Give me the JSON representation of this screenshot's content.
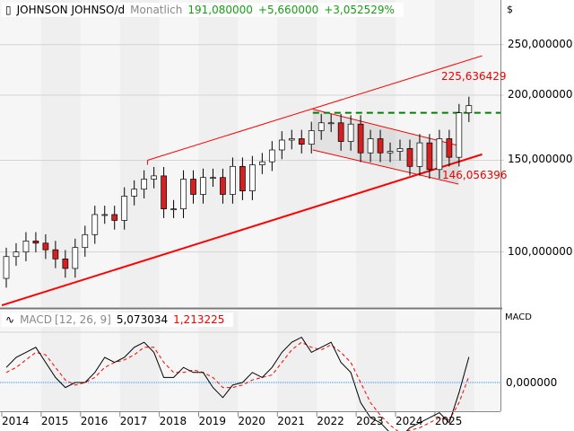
{
  "header": {
    "symbol": "JOHNSON JOHNSO/d",
    "period": "Monatlich",
    "last": "191,080000",
    "change": "+5,660000",
    "change_pct": "+3,052529%"
  },
  "macd_header": {
    "name": "MACD",
    "params": "[12, 26, 9]",
    "macd": "5,073034",
    "signal": "1,213225"
  },
  "axis": {
    "currency": "$",
    "price_ticks": [
      "250,000000",
      "200,000000",
      "150,000000",
      "100,000000"
    ],
    "macd_label": "MACD",
    "macd_tick": "0,000000",
    "years": [
      "2014",
      "2015",
      "2016",
      "2017",
      "2018",
      "2019",
      "2020",
      "2021",
      "2022",
      "2023",
      "2024",
      "2025"
    ]
  },
  "annotations": {
    "upper_value": "225,636429",
    "lower_value": "146,056396"
  },
  "colors": {
    "up": "#ffffff",
    "down": "#d42020",
    "trend": "#ff0000",
    "support": "#008000",
    "macd": "#000000",
    "signal": "#ff0000",
    "zero": "#1e90ff"
  },
  "chart_data": {
    "type": "candlestick",
    "title": "JOHNSON JOHNSO/d Monatlich",
    "scale": "log",
    "ylim": [
      75,
      290
    ],
    "price_ticks": [
      100,
      150,
      200,
      250
    ],
    "x_start": 2014.0,
    "x_step": 0.25,
    "closes": [
      98,
      100,
      105,
      104,
      101,
      97,
      93,
      102,
      108,
      118,
      118,
      115,
      128,
      132,
      138,
      140,
      121,
      121,
      138,
      129,
      139,
      139,
      129,
      146,
      131,
      147,
      149,
      157,
      164,
      165,
      161,
      171,
      177,
      177,
      163,
      176,
      155,
      165,
      155,
      156,
      158,
      146,
      162,
      144,
      165,
      152,
      185,
      191
    ],
    "open_first": 89,
    "trendlines": [
      {
        "name": "support",
        "from": [
          2014.0,
          79
        ],
        "to": [
          2026.2,
          154
        ],
        "width": 2
      },
      {
        "name": "upper-channel",
        "from": [
          2017.7,
          150
        ],
        "to": [
          2026.2,
          238
        ],
        "width": 1
      },
      {
        "name": "desc-upper",
        "from": [
          2021.9,
          188
        ],
        "to": [
          2025.6,
          160
        ],
        "width": 1
      },
      {
        "name": "desc-lower",
        "from": [
          2021.9,
          157
        ],
        "to": [
          2025.6,
          135
        ],
        "width": 1
      },
      {
        "name": "channel-left",
        "from": [
          2017.7,
          150
        ],
        "to": [
          2017.7,
          150
        ],
        "width": 1
      }
    ],
    "resistance": {
      "value": 185,
      "from": 2021.9
    },
    "macd": {
      "values": [
        3,
        5,
        6,
        7,
        4,
        1,
        -1,
        0,
        0,
        2,
        5,
        4,
        5,
        7,
        8,
        6,
        1,
        1,
        3,
        2,
        2,
        -1,
        -3,
        -0.5,
        0,
        2,
        1,
        3,
        6,
        8,
        9,
        6,
        7,
        8,
        4,
        2,
        -4,
        -7,
        -8,
        -10,
        -11,
        -9,
        -8,
        -7,
        -6,
        -8,
        -2,
        5.07
      ],
      "signal": [
        2,
        3,
        4.5,
        6,
        5.5,
        3,
        0.5,
        -0.5,
        0,
        1,
        3,
        4,
        4.5,
        5.5,
        7,
        7,
        4,
        2,
        2,
        2.5,
        2,
        1,
        -1,
        -1,
        -0.5,
        0.5,
        1,
        1.5,
        4,
        6.5,
        8,
        7,
        6.5,
        7.5,
        6,
        4,
        0,
        -4,
        -6.5,
        -8.5,
        -10,
        -9.5,
        -9,
        -8,
        -7,
        -7.5,
        -4,
        1.21
      ],
      "ylim": [
        -14,
        14
      ]
    }
  }
}
